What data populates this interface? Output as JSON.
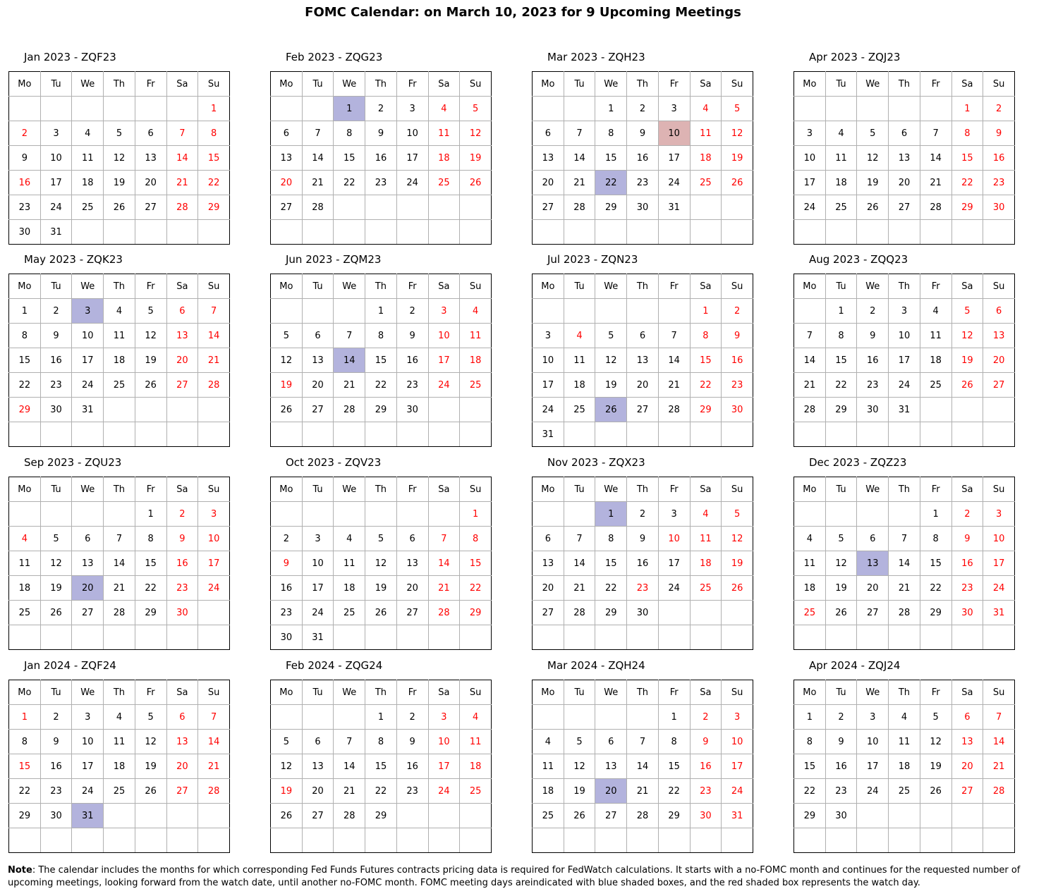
{
  "title": "FOMC Calendar: on March 10, 2023 for 9 Upcoming Meetings",
  "weekdays": [
    "Mo",
    "Tu",
    "We",
    "Th",
    "Fr",
    "Sa",
    "Su"
  ],
  "colors": {
    "fomc_meeting_fill": "#b3b3dd",
    "watch_date_fill": "#ddb3b3",
    "weekend_holiday_text": "#ff0000"
  },
  "months": [
    {
      "label": "Jan 2023 - ZQF23",
      "year": 2023,
      "month": 1,
      "fomc": [],
      "watch": null,
      "red": [
        1,
        2,
        7,
        8,
        14,
        15,
        16,
        21,
        22,
        28,
        29
      ]
    },
    {
      "label": "Feb 2023 - ZQG23",
      "year": 2023,
      "month": 2,
      "fomc": [
        1
      ],
      "watch": null,
      "red": [
        4,
        5,
        11,
        12,
        18,
        19,
        20,
        25,
        26
      ]
    },
    {
      "label": "Mar 2023 - ZQH23",
      "year": 2023,
      "month": 3,
      "fomc": [
        22
      ],
      "watch": 10,
      "red": [
        4,
        5,
        11,
        12,
        18,
        19,
        25,
        26
      ]
    },
    {
      "label": "Apr 2023 - ZQJ23",
      "year": 2023,
      "month": 4,
      "fomc": [],
      "watch": null,
      "red": [
        1,
        2,
        8,
        9,
        15,
        16,
        22,
        23,
        29,
        30
      ]
    },
    {
      "label": "May 2023 - ZQK23",
      "year": 2023,
      "month": 5,
      "fomc": [
        3
      ],
      "watch": null,
      "red": [
        6,
        7,
        13,
        14,
        20,
        21,
        27,
        28,
        29
      ]
    },
    {
      "label": "Jun 2023 - ZQM23",
      "year": 2023,
      "month": 6,
      "fomc": [
        14
      ],
      "watch": null,
      "red": [
        3,
        4,
        10,
        11,
        17,
        18,
        19,
        24,
        25
      ]
    },
    {
      "label": "Jul 2023 - ZQN23",
      "year": 2023,
      "month": 7,
      "fomc": [
        26
      ],
      "watch": null,
      "red": [
        1,
        2,
        4,
        8,
        9,
        15,
        16,
        22,
        23,
        29,
        30
      ]
    },
    {
      "label": "Aug 2023 - ZQQ23",
      "year": 2023,
      "month": 8,
      "fomc": [],
      "watch": null,
      "red": [
        5,
        6,
        12,
        13,
        19,
        20,
        26,
        27
      ]
    },
    {
      "label": "Sep 2023 - ZQU23",
      "year": 2023,
      "month": 9,
      "fomc": [
        20
      ],
      "watch": null,
      "red": [
        2,
        3,
        4,
        9,
        10,
        16,
        17,
        23,
        24,
        30
      ]
    },
    {
      "label": "Oct 2023 - ZQV23",
      "year": 2023,
      "month": 10,
      "fomc": [],
      "watch": null,
      "red": [
        1,
        7,
        8,
        9,
        14,
        15,
        21,
        22,
        28,
        29
      ]
    },
    {
      "label": "Nov 2023 - ZQX23",
      "year": 2023,
      "month": 11,
      "fomc": [
        1
      ],
      "watch": null,
      "red": [
        4,
        5,
        10,
        11,
        12,
        18,
        19,
        23,
        25,
        26
      ]
    },
    {
      "label": "Dec 2023 - ZQZ23",
      "year": 2023,
      "month": 12,
      "fomc": [
        13
      ],
      "watch": null,
      "red": [
        2,
        3,
        9,
        10,
        16,
        17,
        23,
        24,
        25,
        30,
        31
      ]
    },
    {
      "label": "Jan 2024 - ZQF24",
      "year": 2024,
      "month": 1,
      "fomc": [
        31
      ],
      "watch": null,
      "red": [
        1,
        6,
        7,
        13,
        14,
        15,
        20,
        21,
        27,
        28
      ]
    },
    {
      "label": "Feb 2024 - ZQG24",
      "year": 2024,
      "month": 2,
      "fomc": [],
      "watch": null,
      "red": [
        3,
        4,
        10,
        11,
        17,
        18,
        19,
        24,
        25
      ]
    },
    {
      "label": "Mar 2024 - ZQH24",
      "year": 2024,
      "month": 3,
      "fomc": [
        20
      ],
      "watch": null,
      "red": [
        2,
        3,
        9,
        10,
        16,
        17,
        23,
        24,
        30,
        31
      ]
    },
    {
      "label": "Apr 2024 - ZQJ24",
      "year": 2024,
      "month": 4,
      "fomc": [],
      "watch": null,
      "red": [
        6,
        7,
        13,
        14,
        20,
        21,
        27,
        28
      ]
    }
  ],
  "note": {
    "label": "Note",
    "text": ": The calendar includes the months for which corresponding Fed Funds Futures contracts pricing data is required for FedWatch calculations. It starts with a no-FOMC month and continues for the requested number of upcoming meetings, looking forward from the watch date, until another no-FOMC month. FOMC meeting days areindicated with blue shaded boxes, and the red shaded box represents the watch day."
  }
}
